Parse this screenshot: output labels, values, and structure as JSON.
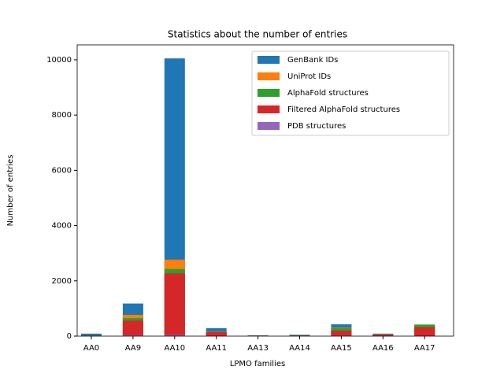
{
  "chart_data": {
    "type": "bar",
    "title": "Statistics about the number of entries",
    "x_label": "LPMO families",
    "y_label": "Number of entries",
    "categories": [
      "AA0",
      "AA9",
      "AA10",
      "AA11",
      "AA13",
      "AA14",
      "AA15",
      "AA16",
      "AA17"
    ],
    "series": [
      {
        "name": "GenBank IDs",
        "color": "#1f77b4",
        "values": [
          90,
          1180,
          10050,
          290,
          30,
          50,
          430,
          90,
          380
        ]
      },
      {
        "name": "UniProt IDs",
        "color": "#ff7f0e",
        "values": [
          20,
          770,
          2770,
          170,
          20,
          30,
          310,
          70,
          410
        ]
      },
      {
        "name": "AlphaFold structures",
        "color": "#2ca02c",
        "values": [
          20,
          650,
          2430,
          160,
          15,
          25,
          290,
          65,
          420
        ]
      },
      {
        "name": "Filtered AlphaFold structures",
        "color": "#d62728",
        "values": [
          15,
          560,
          2270,
          150,
          10,
          20,
          200,
          50,
          330
        ]
      },
      {
        "name": "PDB structures",
        "color": "#9467bd",
        "values": [
          5,
          30,
          40,
          10,
          0,
          2,
          20,
          2,
          0
        ]
      }
    ],
    "ylim": [
      0,
      10540
    ],
    "yticks": [
      0,
      2000,
      4000,
      6000,
      8000,
      10000
    ],
    "legend": "upper right",
    "grid": false
  }
}
